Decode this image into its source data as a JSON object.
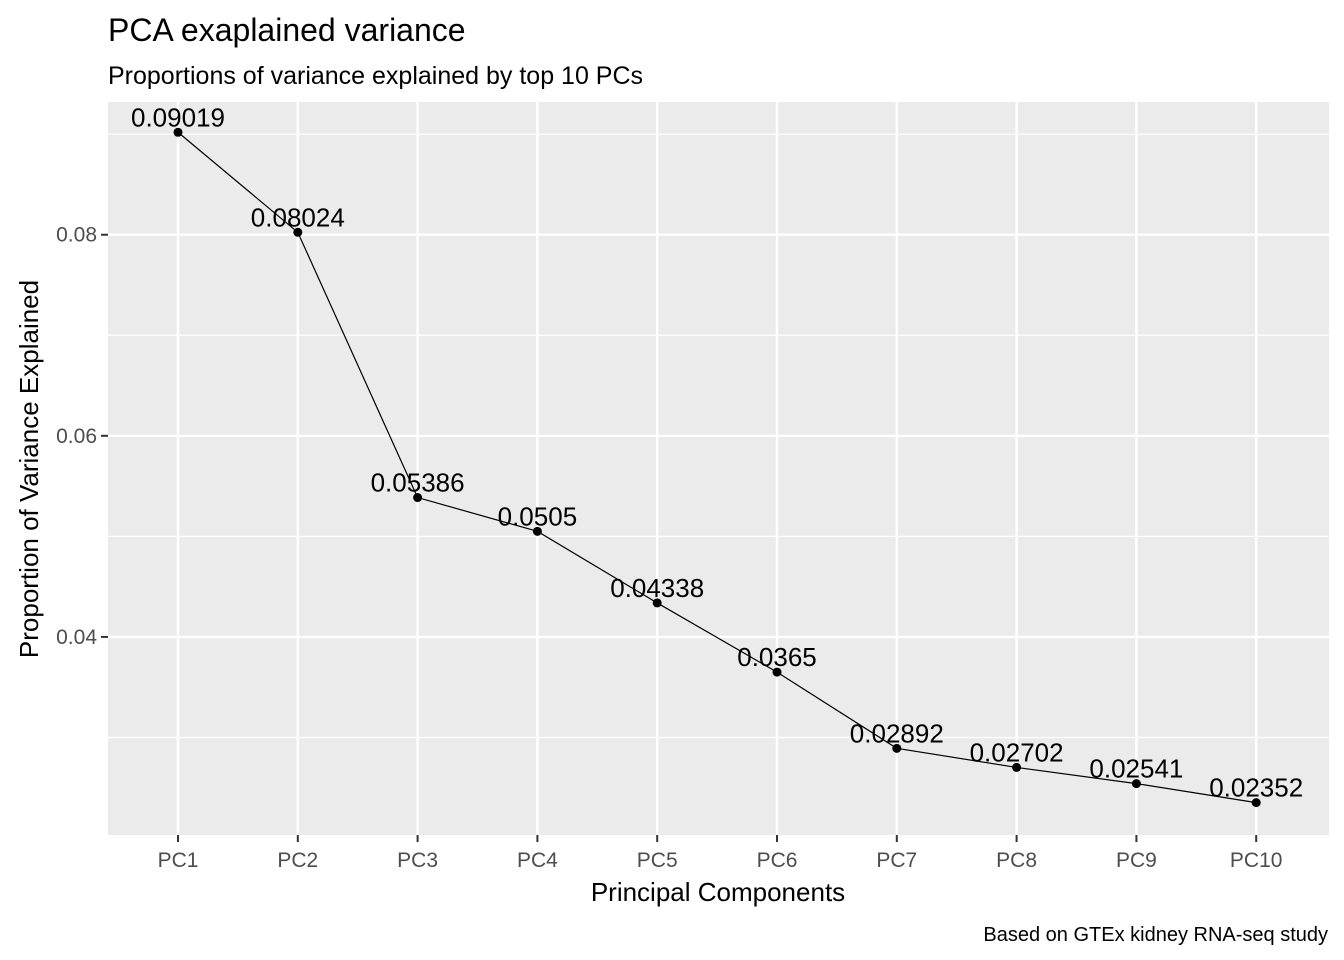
{
  "chart_data": {
    "type": "line",
    "title": "PCA exaplained variance",
    "subtitle": "Proportions of variance explained by top 10 PCs",
    "xlabel": "Principal Components",
    "ylabel": "Proportion of Variance Explained",
    "caption": "Based on GTEx kidney RNA-seq study",
    "categories": [
      "PC1",
      "PC2",
      "PC3",
      "PC4",
      "PC5",
      "PC6",
      "PC7",
      "PC8",
      "PC9",
      "PC10"
    ],
    "values": [
      0.09019,
      0.08024,
      0.05386,
      0.0505,
      0.04338,
      0.0365,
      0.02892,
      0.02702,
      0.02541,
      0.02352
    ],
    "data_labels": [
      "0.09019",
      "0.08024",
      "0.05386",
      "0.0505",
      "0.04338",
      "0.0365",
      "0.02892",
      "0.02702",
      "0.02541",
      "0.02352"
    ],
    "y_ticks": [
      0.04,
      0.06,
      0.08
    ],
    "y_tick_labels": [
      "0.04",
      "0.06",
      "0.08"
    ],
    "ylim": [
      0.0203,
      0.0932
    ],
    "grid": true,
    "legend": "none",
    "colors": {
      "panel_background": "#ebebeb",
      "grid": "#ffffff",
      "line": "#000000",
      "point": "#000000",
      "tick_text": "#4d4d4d",
      "tick_mark": "#333333"
    }
  }
}
